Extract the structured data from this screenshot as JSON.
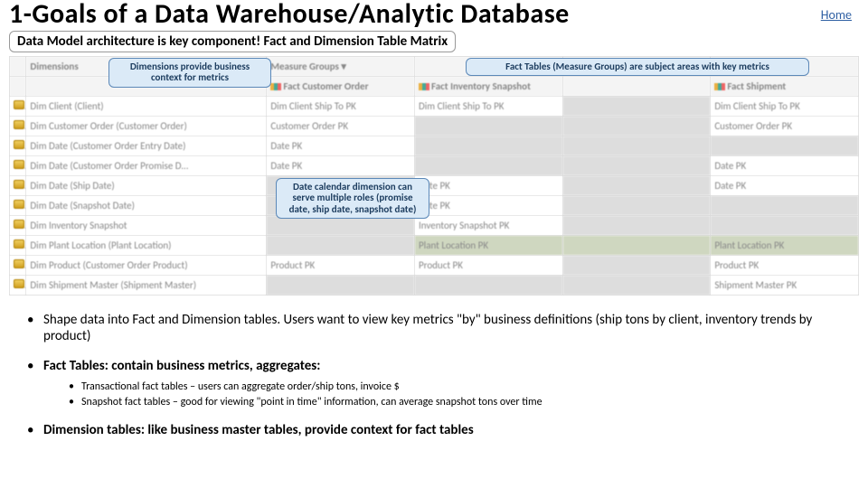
{
  "title": "1-Goals of a Data Warehouse/Analytic Database",
  "homeLink": "Home",
  "banner": "Data Model architecture is key component!  Fact and Dimension Table Matrix",
  "callouts": {
    "dims": "Dimensions provide business\ncontext for metrics",
    "facts": "Fact Tables (Measure Groups) are subject areas with key metrics",
    "date": "Date calendar dimension can serve multiple roles (promise date, ship date, snapshot date)"
  },
  "matrix": {
    "headers": [
      "",
      "Dimensions",
      "Measure Groups",
      "",
      "",
      ""
    ],
    "measureGroupRow": [
      "",
      "",
      "Fact Customer Order",
      "Fact Inventory Snapshot",
      "",
      "Fact Shipment"
    ],
    "rows": [
      [
        "",
        "Dim Client (Client)",
        "Dim Client Ship To PK",
        "Dim Client Ship To PK",
        "",
        "Dim Client Ship To PK"
      ],
      [
        "",
        "Dim Customer Order (Customer Order)",
        "Customer Order PK",
        "",
        "",
        "Customer Order PK"
      ],
      [
        "",
        "Dim Date (Customer Order Entry Date)",
        "Date PK",
        "",
        "",
        ""
      ],
      [
        "",
        "Dim Date (Customer Order Promise D…",
        "Date PK",
        "",
        "",
        "Date PK"
      ],
      [
        "",
        "Dim Date (Ship Date)",
        "",
        "Date PK",
        "",
        "Date PK"
      ],
      [
        "",
        "Dim Date (Snapshot Date)",
        "",
        "Date PK",
        "",
        ""
      ],
      [
        "",
        "Dim Inventory Snapshot",
        "",
        "Inventory Snapshot PK",
        "",
        ""
      ],
      [
        "",
        "Dim Plant Location (Plant Location)",
        "",
        "Plant Location PK",
        "",
        "Plant Location PK"
      ],
      [
        "",
        "Dim Product (Customer Order Product)",
        "Product PK",
        "Product PK",
        "",
        "Product PK"
      ],
      [
        "",
        "Dim Shipment Master (Shipment Master)",
        "",
        "",
        "",
        "Shipment Master PK"
      ]
    ]
  },
  "bullets": [
    {
      "html": "Shape data into Fact and Dimension tables.  Users want to view key metrics \"by\" business definitions  (ship tons by client, inventory trends by product)",
      "bold": false
    },
    {
      "html": "Fact Tables: contain business metrics, aggregates:",
      "bold": true,
      "sub": [
        "Transactional fact tables – users can aggregate order/ship tons, invoice $",
        "Snapshot fact tables – good for viewing \"point in time\" information, can average snapshot tons over time"
      ]
    },
    {
      "html": "Dimension tables: like business master tables, provide context for fact tables",
      "bold": true
    }
  ]
}
